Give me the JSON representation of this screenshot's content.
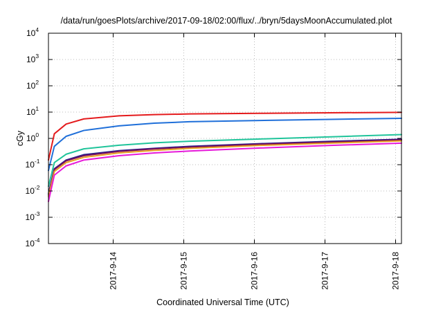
{
  "chart_data": {
    "type": "line",
    "title": "/data/run/goesPlots/archive/2017-09-18/02:00/flux/../bryn/5daysMoonAccumulated.plot",
    "xlabel": "Coordinated Universal Time (UTC)",
    "ylabel": "cGy",
    "x_scale": "time",
    "y_scale": "log",
    "xlim": [
      "2017-09-13 02:00",
      "2017-09-18 02:00"
    ],
    "ylim": [
      0.0001,
      10000
    ],
    "x_ticks": [
      "2017-9-14",
      "2017-9-15",
      "2017-9-16",
      "2017-9-17",
      "2017-9-18"
    ],
    "y_ticks": [
      {
        "mantissa": "10",
        "exponent": "-4"
      },
      {
        "mantissa": "10",
        "exponent": "-3"
      },
      {
        "mantissa": "10",
        "exponent": "-2"
      },
      {
        "mantissa": "10",
        "exponent": "-1"
      },
      {
        "mantissa": "10",
        "exponent": "0"
      },
      {
        "mantissa": "10",
        "exponent": "1"
      },
      {
        "mantissa": "10",
        "exponent": "2"
      },
      {
        "mantissa": "10",
        "exponent": "3"
      },
      {
        "mantissa": "10",
        "exponent": "4"
      }
    ],
    "grid": true,
    "x": [
      "2017-09-13 02:00",
      "2017-09-13 04:00",
      "2017-09-13 08:00",
      "2017-09-13 14:00",
      "2017-09-14 02:00",
      "2017-09-14 14:00",
      "2017-09-15 02:00",
      "2017-09-16 02:00",
      "2017-09-17 02:00",
      "2017-09-18 02:00"
    ],
    "series": [
      {
        "color": "#e41a1c",
        "values": [
          0.15,
          1.5,
          3.5,
          5.5,
          7.2,
          8.0,
          8.5,
          9.0,
          9.4,
          9.8
        ]
      },
      {
        "color": "#1f6fd9",
        "values": [
          0.06,
          0.5,
          1.2,
          2.0,
          3.0,
          3.8,
          4.3,
          4.8,
          5.3,
          5.8
        ]
      },
      {
        "color": "#1fc49a",
        "values": [
          0.015,
          0.12,
          0.25,
          0.4,
          0.55,
          0.68,
          0.78,
          0.95,
          1.15,
          1.4
        ]
      },
      {
        "color": "#1f1f8f",
        "values": [
          0.008,
          0.07,
          0.15,
          0.24,
          0.34,
          0.42,
          0.5,
          0.63,
          0.77,
          0.93
        ]
      },
      {
        "color": "#7a0f5a",
        "values": [
          0.007,
          0.065,
          0.14,
          0.22,
          0.32,
          0.4,
          0.47,
          0.6,
          0.73,
          0.88
        ]
      },
      {
        "color": "#e8a020",
        "values": [
          0.006,
          0.055,
          0.12,
          0.19,
          0.28,
          0.35,
          0.42,
          0.54,
          0.66,
          0.8
        ]
      },
      {
        "color": "#e619d9",
        "values": [
          0.004,
          0.04,
          0.09,
          0.15,
          0.22,
          0.28,
          0.33,
          0.43,
          0.54,
          0.66
        ]
      }
    ]
  }
}
